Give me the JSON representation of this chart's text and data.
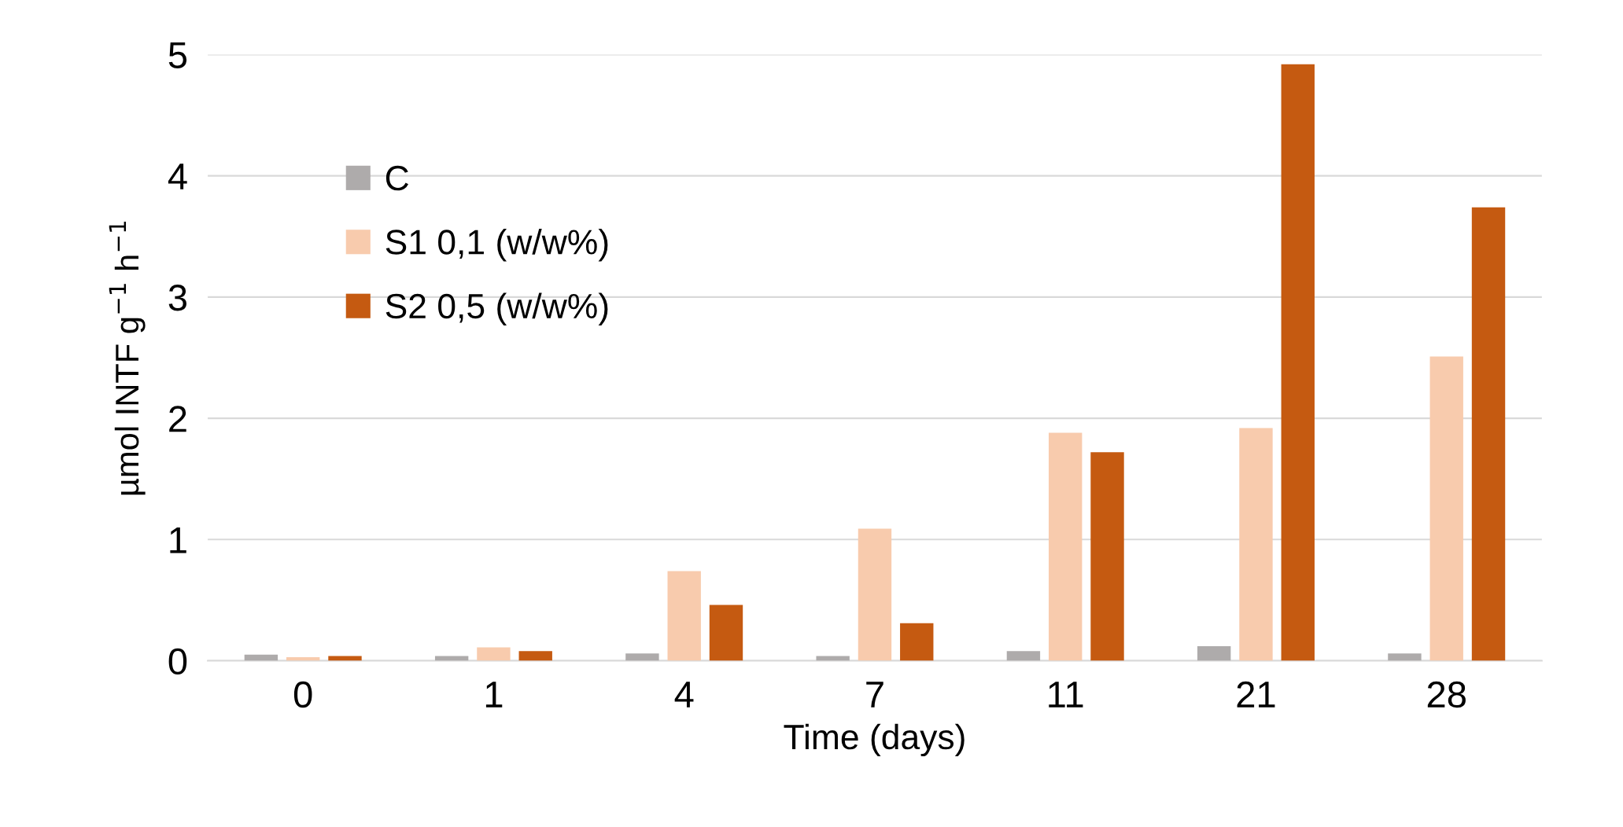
{
  "chart_data": {
    "type": "bar",
    "xlabel": "Time (days)",
    "ylabel": "µmol INTF g$^{−1}$ h$^{−1}$",
    "categories": [
      "0",
      "1",
      "4",
      "7",
      "11",
      "21",
      "28"
    ],
    "series": [
      {
        "name": "C",
        "color": "#aeabab",
        "values": [
          0.05,
          0.04,
          0.06,
          0.04,
          0.08,
          0.12,
          0.06
        ]
      },
      {
        "name": "S1 0,1 (w/w%)",
        "color": "#f8cbad",
        "values": [
          0.03,
          0.11,
          0.74,
          1.09,
          1.88,
          1.92,
          2.51
        ]
      },
      {
        "name": "S2 0,5 (w/w%)",
        "color": "#c55a11",
        "values": [
          0.04,
          0.08,
          0.46,
          0.31,
          1.72,
          4.92,
          3.74
        ]
      }
    ],
    "ylim": [
      0,
      5
    ],
    "yticks": [
      0,
      1,
      2,
      3,
      4,
      5
    ],
    "grid": "y",
    "legend": "top left"
  }
}
